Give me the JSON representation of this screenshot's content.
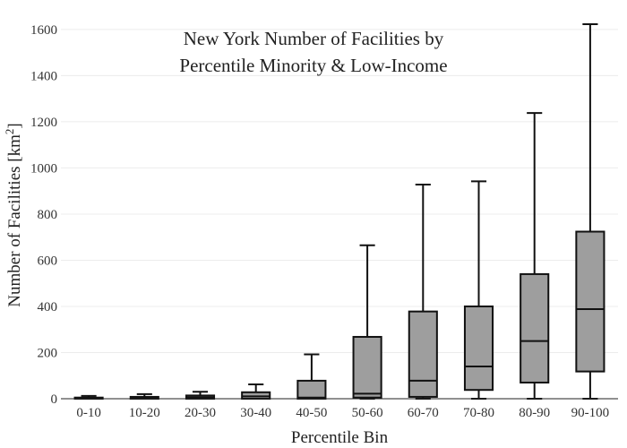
{
  "chart_data": {
    "type": "box",
    "title_lines": [
      "New York Number of Facilities by",
      "Percentile Minority & Low-Income"
    ],
    "xlabel": "Percentile Bin",
    "ylabel_main": "Number of Facilities  [km",
    "ylabel_sup": "2",
    "ylabel_end": "]",
    "ylim": [
      0,
      1650
    ],
    "yticks": [
      0,
      200,
      400,
      600,
      800,
      1000,
      1200,
      1400,
      1600
    ],
    "grid": true,
    "box_color": "#9e9e9e",
    "categories": [
      "0-10",
      "10-20",
      "20-30",
      "30-40",
      "40-50",
      "50-60",
      "60-70",
      "70-80",
      "80-90",
      "90-100"
    ],
    "boxes": [
      {
        "min": 0,
        "q1": 0,
        "median": 2,
        "q3": 5,
        "max": 12
      },
      {
        "min": 0,
        "q1": 0,
        "median": 4,
        "q3": 8,
        "max": 20
      },
      {
        "min": 0,
        "q1": 0,
        "median": 6,
        "q3": 14,
        "max": 30
      },
      {
        "min": 0,
        "q1": 0,
        "median": 10,
        "q3": 28,
        "max": 62
      },
      {
        "min": 0,
        "q1": 0,
        "median": 5,
        "q3": 78,
        "max": 192
      },
      {
        "min": 0,
        "q1": 5,
        "median": 22,
        "q3": 268,
        "max": 665
      },
      {
        "min": 0,
        "q1": 8,
        "median": 78,
        "q3": 378,
        "max": 928
      },
      {
        "min": 0,
        "q1": 38,
        "median": 140,
        "q3": 400,
        "max": 942
      },
      {
        "min": 0,
        "q1": 70,
        "median": 250,
        "q3": 540,
        "max": 1238
      },
      {
        "min": 0,
        "q1": 118,
        "median": 388,
        "q3": 724,
        "max": 1623
      }
    ]
  }
}
